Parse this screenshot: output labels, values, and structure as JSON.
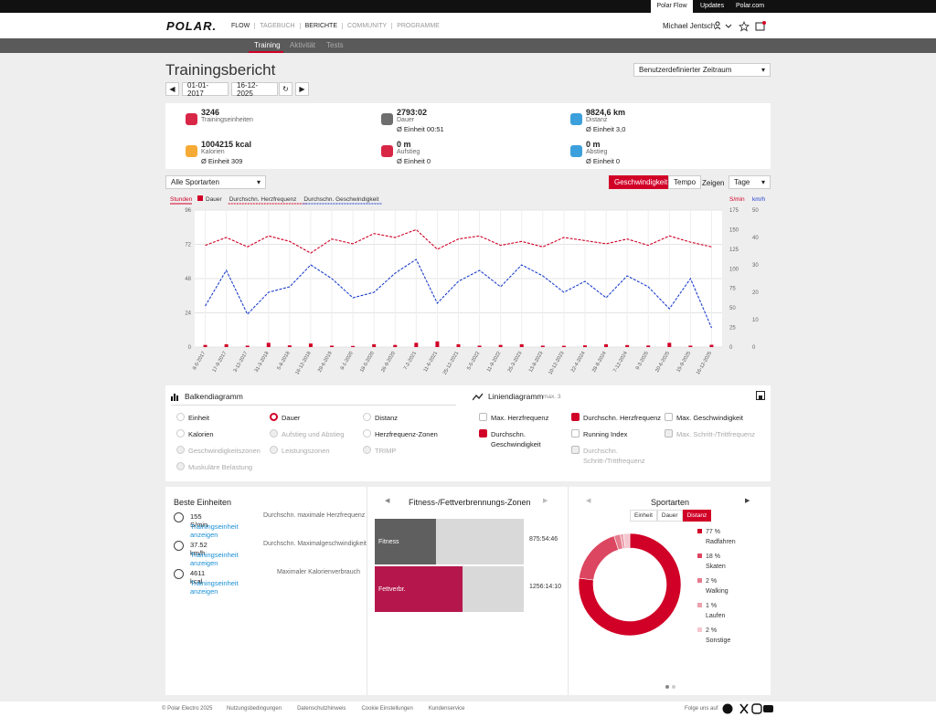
{
  "topbar": {
    "links": [
      "Polar Flow",
      "Updates",
      "Polar.com"
    ]
  },
  "header": {
    "logo": "POLAR.",
    "nav": [
      "FLOW",
      "TAGEBUCH",
      "BERICHTE",
      "COMMUNITY",
      "PROGRAMME"
    ],
    "user": "Michael Jentsch"
  },
  "subnav": [
    "Training",
    "Aktivität",
    "Tests"
  ],
  "page": {
    "title": "Trainingsbericht",
    "range": "Benutzerdefinierter Zeitraum",
    "from": "01-01-2017",
    "to": "16-12-2025"
  },
  "summary": [
    {
      "value": "3246",
      "label": "Trainingseinheiten"
    },
    {
      "value": "2793:02",
      "label": "Dauer",
      "avg": "Ø Einheit 00:51"
    },
    {
      "value": "9824,6 km",
      "label": "Distanz",
      "avg": "Ø Einheit 3,0"
    },
    {
      "value": "1004215 kcal",
      "label": "Kalorien",
      "avg": "Ø Einheit 309"
    },
    {
      "value": "0 m",
      "label": "Aufstieg",
      "avg": "Ø Einheit 0"
    },
    {
      "value": "0 m",
      "label": "Abstieg",
      "avg": "Ø Einheit 0"
    }
  ],
  "controls": {
    "sport": "Alle Sportarten",
    "modes": [
      "Geschwindigkeit",
      "Tempo"
    ],
    "show": "Zeigen",
    "period": "Tage"
  },
  "chart": {
    "type": "bar-line",
    "y_label": "Stunden",
    "y2_label": "S/min",
    "y3_label": "km/h",
    "categories": [
      "8-5-2017",
      "17-9-2017",
      "3-12-2017",
      "31-3-2018",
      "5-8-2018",
      "16-12-2018",
      "29-6-2019",
      "8-1-2020",
      "18-5-2020",
      "26-9-2020",
      "7-2-2021",
      "11-6-2021",
      "25-12-2021",
      "5-5-2022",
      "11-9-2022",
      "25-3-2023",
      "13-8-2023",
      "10-12-2023",
      "22-4-2024",
      "28-8-2024",
      "7-12-2024",
      "9-3-2025",
      "20-6-2025",
      "15-9-2025",
      "16-12-2025"
    ],
    "series": [
      {
        "name": "Dauer",
        "color": "#d10027",
        "values": [
          1.5,
          2,
          1,
          3,
          1.2,
          2.5,
          1,
          0.8,
          2,
          1.5,
          3,
          4,
          2,
          1,
          1.5,
          2,
          1,
          0.9,
          1.2,
          2,
          1.4,
          1.1,
          3,
          1,
          1.6
        ]
      },
      {
        "name": "Durchschn. Herzfrequenz",
        "color": "#d10027",
        "axis": "y2",
        "values": [
          130,
          140,
          128,
          142,
          135,
          120,
          138,
          132,
          145,
          140,
          150,
          125,
          138,
          142,
          130,
          135,
          128,
          140,
          136,
          132,
          138,
          130,
          142,
          134,
          128
        ]
      },
      {
        "name": "Durchschn. Geschwindigkeit",
        "color": "#1f3fcc",
        "axis": "y3",
        "values": [
          15,
          28,
          12,
          20,
          22,
          30,
          25,
          18,
          20,
          27,
          32,
          16,
          24,
          28,
          22,
          30,
          26,
          20,
          24,
          18,
          26,
          22,
          14,
          25,
          7
        ]
      }
    ],
    "ylim": [
      0,
      96
    ],
    "yticks": [
      0,
      24,
      48,
      72,
      96
    ],
    "y2lim": [
      0,
      175
    ],
    "y2ticks": [
      0,
      25,
      50,
      75,
      100,
      125,
      150,
      175
    ],
    "y3lim": [
      0,
      50
    ],
    "y3ticks": [
      0,
      10,
      20,
      30,
      40,
      50
    ],
    "grid": true
  },
  "options": {
    "bar_title": "Balkendiagramm",
    "bar_options": [
      {
        "label": "Einheit"
      },
      {
        "label": "Dauer",
        "selected": true
      },
      {
        "label": "Distanz"
      },
      {
        "label": "Kalorien"
      },
      {
        "label": "Aufstieg und Abstieg",
        "disabled": true
      },
      {
        "label": "Herzfrequenz-Zonen"
      },
      {
        "label": "Geschwindigkeitszonen",
        "disabled": true
      },
      {
        "label": "Leistungszonen",
        "disabled": true
      },
      {
        "label": "TRIMP",
        "disabled": true
      },
      {
        "label": "Muskuläre Belastung",
        "disabled": true
      }
    ],
    "line_title": "Liniendiagramm",
    "line_note": "max. 3",
    "line_options": [
      {
        "label": "Max. Herzfrequenz"
      },
      {
        "label": "Durchschn. Herzfrequenz",
        "selected": true
      },
      {
        "label": "Max. Geschwindigkeit"
      },
      {
        "label": "Durchschn. Geschwindigkeit",
        "selected": true
      },
      {
        "label": "Running Index"
      },
      {
        "label": "Max. Schritt-/Trittfrequenz",
        "disabled": true
      },
      {
        "label": "Durchschn. Schritt-/Trittfrequenz",
        "disabled": true
      }
    ]
  },
  "best": {
    "title": "Beste Einheiten",
    "items": [
      {
        "value": "155 S/min",
        "label": "Durchschn. maximale Herzfrequenz",
        "link": "Trainingseinheit anzeigen"
      },
      {
        "value": "37.52 km/h",
        "label": "Durchschn. Maximalgeschwindigkeit",
        "link": "Trainingseinheit anzeigen"
      },
      {
        "value": "4611 kcal",
        "label": "Maximaler Kalorienverbrauch",
        "link": "Trainingseinheit anzeigen"
      }
    ]
  },
  "zones": {
    "title": "Fitness-/Fettverbrennungs-Zonen",
    "categories": [
      "Fitness",
      "Fettverbr."
    ],
    "values": [
      875.913,
      1256.236
    ],
    "value_labels": [
      "875:54:46",
      "1256:14:10"
    ],
    "colors": [
      "#5f5f5f",
      "#b5174d"
    ]
  },
  "sports": {
    "title": "Sportarten",
    "tabs": [
      "Einheit",
      "Dauer",
      "Distanz"
    ],
    "active_tab": 2,
    "categories": [
      "Radfahren",
      "Skaten",
      "Walking",
      "Laufen",
      "Sonstige"
    ],
    "values": [
      77,
      18,
      2,
      1,
      2
    ],
    "value_labels": [
      "77 %",
      "18 %",
      "2 %",
      "1 %",
      "2 %"
    ],
    "colors": [
      "#d10027",
      "#dc4660",
      "#e57a8c",
      "#eda0ad",
      "#f5c6ce"
    ]
  },
  "footer": {
    "copyright": "© Polar Electro 2025",
    "links": [
      "Nutzungsbedingungen",
      "Datenschutzhinweis",
      "Cookie Einstellungen",
      "Kundenservice"
    ],
    "follow": "Folge uns auf"
  }
}
